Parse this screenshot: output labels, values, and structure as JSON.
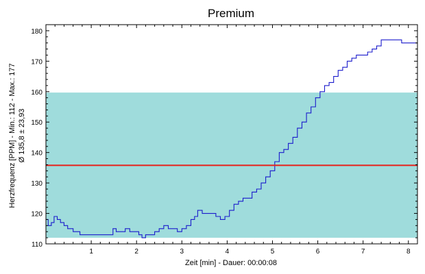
{
  "chart_data": {
    "type": "line",
    "title": "Premium",
    "xlabel": "Zeit [min] - Dauer: 00:00:08",
    "ylabel_line1": "Herzfrequenz [PPM] - Min.: 112 - Max.: 177",
    "ylabel_line2": "Ø 135,8 ± 23,93",
    "xlim": [
      0,
      8.2
    ],
    "ylim": [
      110,
      182
    ],
    "x_ticks": [
      1,
      2,
      3,
      4,
      5,
      6,
      7,
      8
    ],
    "y_ticks": [
      110,
      120,
      130,
      140,
      150,
      160,
      170,
      180
    ],
    "mean_line": 135.8,
    "band": [
      112,
      159.7
    ],
    "colors": {
      "line": "#1a1acc",
      "mean": "#e8201a",
      "band": "#9fdcdc"
    },
    "series": [
      {
        "x": [
          0,
          0.05,
          0.12,
          0.18,
          0.25,
          0.32,
          0.4,
          0.48,
          0.6,
          0.75,
          0.9,
          1.0,
          1.1,
          1.2,
          1.3,
          1.4,
          1.48,
          1.55,
          1.65,
          1.75,
          1.85,
          1.95,
          2.05,
          2.12,
          2.2,
          2.3,
          2.4,
          2.5,
          2.6,
          2.7,
          2.8,
          2.9,
          3.0,
          3.1,
          3.2,
          3.28,
          3.35,
          3.45,
          3.55,
          3.65,
          3.75,
          3.85,
          3.95,
          4.05,
          4.15,
          4.25,
          4.35,
          4.45,
          4.55,
          4.65,
          4.75,
          4.85,
          4.95,
          5.05,
          5.15,
          5.25,
          5.35,
          5.45,
          5.55,
          5.65,
          5.75,
          5.85,
          5.95,
          6.05,
          6.15,
          6.25,
          6.35,
          6.45,
          6.55,
          6.65,
          6.75,
          6.85,
          6.95,
          7.1,
          7.2,
          7.3,
          7.4,
          7.55,
          7.7,
          7.85,
          7.95,
          8.05,
          8.15,
          8.2
        ],
        "y": [
          118,
          116,
          117,
          119,
          118,
          117,
          116,
          115,
          114,
          113,
          113,
          113,
          113,
          113,
          113,
          113,
          115,
          114,
          114,
          115,
          114,
          114,
          113,
          112,
          113,
          113,
          114,
          115,
          116,
          115,
          115,
          114,
          115,
          116,
          118,
          119,
          121,
          120,
          120,
          120,
          119,
          118,
          119,
          121,
          123,
          124,
          125,
          125,
          127,
          128,
          130,
          132,
          134,
          137,
          140,
          141,
          143,
          145,
          148,
          150,
          153,
          155,
          158,
          160,
          162,
          163,
          165,
          167,
          168,
          170,
          171,
          172,
          172,
          173,
          174,
          175,
          177,
          177,
          177,
          176,
          176,
          176,
          176,
          176
        ]
      }
    ]
  }
}
